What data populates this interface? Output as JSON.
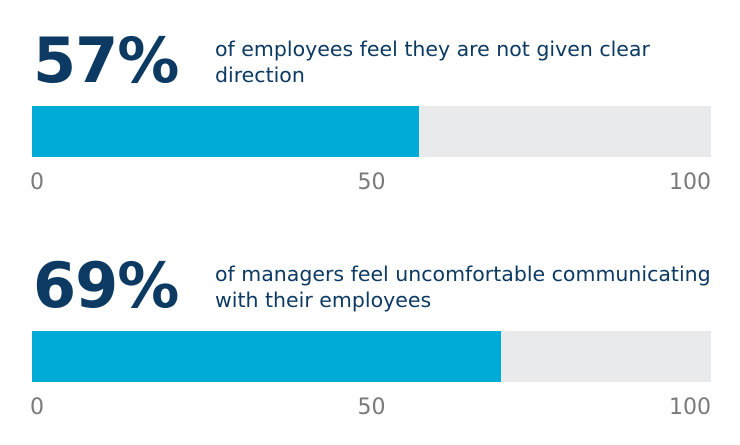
{
  "colors": {
    "heading": "#0c3a62",
    "fill": "#00acd7",
    "track": "#e9eaec",
    "tick": "#7a7a7a"
  },
  "stats": [
    {
      "value_label": "57%",
      "caption": "of employees feel they are not given clear direction"
    },
    {
      "value_label": "69%",
      "caption": "of managers feel uncomfortable communicating with their employees"
    }
  ],
  "chart_data": [
    {
      "type": "bar",
      "orientation": "horizontal",
      "value": 57,
      "xlim": [
        0,
        100
      ],
      "ticks": [
        "0",
        "50",
        "100"
      ]
    },
    {
      "type": "bar",
      "orientation": "horizontal",
      "value": 69,
      "xlim": [
        0,
        100
      ],
      "ticks": [
        "0",
        "50",
        "100"
      ]
    }
  ]
}
